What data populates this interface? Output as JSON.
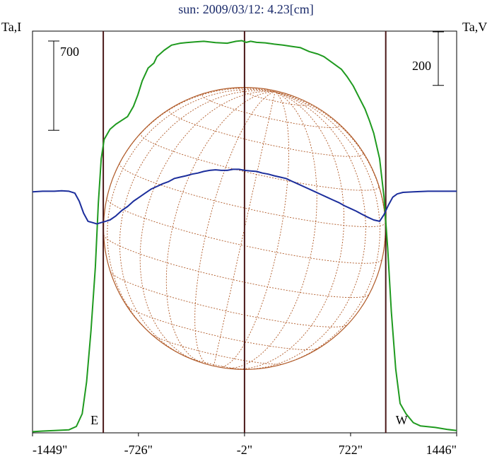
{
  "chart_data": {
    "type": "line",
    "title": "sun: 2009/03/12: 4.23[cm]",
    "xlim": [
      -1449,
      1446
    ],
    "x_ticks": [
      {
        "value": -1449,
        "label": "-1449\""
      },
      {
        "value": -726,
        "label": "-726\""
      },
      {
        "value": -2,
        "label": "-2\""
      },
      {
        "value": 722,
        "label": "722\""
      },
      {
        "value": 1446,
        "label": "1446\""
      }
    ],
    "left_axis": {
      "label": "Ta,I",
      "scale_bar_label": "700",
      "scale_bar_value": 700,
      "ylim": [
        0,
        3150
      ]
    },
    "right_axis": {
      "label": "Ta,V",
      "scale_bar_label": "200",
      "scale_bar_value": 200,
      "ylim": [
        -900,
        600
      ]
    },
    "limb_markers": [
      {
        "value": -966,
        "label": "E"
      },
      {
        "value": 962,
        "label": "W"
      }
    ],
    "center_marker": -2,
    "solar_disk": {
      "center_x": -2,
      "radius": 962,
      "line_color": "#b05a28"
    },
    "series": [
      {
        "name": "Ta,I",
        "axis": "left",
        "color": "#1f9a1f",
        "points": [
          [
            -1449,
            9
          ],
          [
            -1380,
            14
          ],
          [
            -1300,
            18
          ],
          [
            -1200,
            24
          ],
          [
            -1150,
            50
          ],
          [
            -1110,
            150
          ],
          [
            -1080,
            400
          ],
          [
            -1050,
            800
          ],
          [
            -1020,
            1300
          ],
          [
            -1000,
            1800
          ],
          [
            -980,
            2150
          ],
          [
            -960,
            2300
          ],
          [
            -920,
            2380
          ],
          [
            -880,
            2420
          ],
          [
            -840,
            2450
          ],
          [
            -800,
            2480
          ],
          [
            -760,
            2560
          ],
          [
            -730,
            2650
          ],
          [
            -700,
            2760
          ],
          [
            -660,
            2860
          ],
          [
            -620,
            2900
          ],
          [
            -600,
            2950
          ],
          [
            -550,
            3000
          ],
          [
            -500,
            3040
          ],
          [
            -440,
            3055
          ],
          [
            -400,
            3060
          ],
          [
            -340,
            3065
          ],
          [
            -280,
            3070
          ],
          [
            -200,
            3060
          ],
          [
            -120,
            3055
          ],
          [
            -60,
            3070
          ],
          [
            -20,
            3075
          ],
          [
            10,
            3062
          ],
          [
            40,
            3070
          ],
          [
            80,
            3062
          ],
          [
            140,
            3058
          ],
          [
            200,
            3048
          ],
          [
            260,
            3040
          ],
          [
            320,
            3030
          ],
          [
            380,
            3020
          ],
          [
            440,
            2990
          ],
          [
            500,
            2970
          ],
          [
            540,
            2950
          ],
          [
            600,
            2900
          ],
          [
            660,
            2850
          ],
          [
            700,
            2790
          ],
          [
            740,
            2720
          ],
          [
            780,
            2630
          ],
          [
            820,
            2540
          ],
          [
            850,
            2450
          ],
          [
            880,
            2350
          ],
          [
            920,
            2150
          ],
          [
            950,
            1850
          ],
          [
            975,
            1450
          ],
          [
            1000,
            950
          ],
          [
            1030,
            500
          ],
          [
            1060,
            230
          ],
          [
            1100,
            150
          ],
          [
            1150,
            80
          ],
          [
            1200,
            54
          ],
          [
            1300,
            42
          ],
          [
            1380,
            27
          ],
          [
            1446,
            18
          ]
        ]
      },
      {
        "name": "Ta,V",
        "axis": "right",
        "color": "#1c2e9c",
        "points": [
          [
            -1449,
            0
          ],
          [
            -1380,
            2
          ],
          [
            -1300,
            2
          ],
          [
            -1250,
            4
          ],
          [
            -1200,
            2
          ],
          [
            -1160,
            -5
          ],
          [
            -1130,
            -35
          ],
          [
            -1100,
            -80
          ],
          [
            -1070,
            -110
          ],
          [
            -1040,
            -115
          ],
          [
            -1010,
            -120
          ],
          [
            -980,
            -115
          ],
          [
            -950,
            -110
          ],
          [
            -920,
            -105
          ],
          [
            -880,
            -90
          ],
          [
            -840,
            -70
          ],
          [
            -800,
            -55
          ],
          [
            -760,
            -35
          ],
          [
            -720,
            -20
          ],
          [
            -680,
            -5
          ],
          [
            -640,
            10
          ],
          [
            -600,
            20
          ],
          [
            -560,
            30
          ],
          [
            -520,
            38
          ],
          [
            -480,
            50
          ],
          [
            -440,
            55
          ],
          [
            -400,
            60
          ],
          [
            -360,
            66
          ],
          [
            -320,
            70
          ],
          [
            -280,
            76
          ],
          [
            -240,
            80
          ],
          [
            -200,
            82
          ],
          [
            -160,
            80
          ],
          [
            -120,
            80
          ],
          [
            -80,
            84
          ],
          [
            -40,
            84
          ],
          [
            0,
            80
          ],
          [
            40,
            78
          ],
          [
            80,
            76
          ],
          [
            120,
            70
          ],
          [
            160,
            66
          ],
          [
            200,
            60
          ],
          [
            240,
            55
          ],
          [
            280,
            50
          ],
          [
            320,
            40
          ],
          [
            360,
            30
          ],
          [
            400,
            20
          ],
          [
            440,
            10
          ],
          [
            480,
            0
          ],
          [
            520,
            -10
          ],
          [
            560,
            -20
          ],
          [
            600,
            -30
          ],
          [
            640,
            -40
          ],
          [
            680,
            -52
          ],
          [
            720,
            -62
          ],
          [
            760,
            -72
          ],
          [
            800,
            -84
          ],
          [
            840,
            -95
          ],
          [
            880,
            -105
          ],
          [
            920,
            -110
          ],
          [
            950,
            -85
          ],
          [
            980,
            -50
          ],
          [
            1010,
            -20
          ],
          [
            1040,
            -8
          ],
          [
            1080,
            -2
          ],
          [
            1150,
            0
          ],
          [
            1250,
            2
          ],
          [
            1350,
            2
          ],
          [
            1446,
            2
          ]
        ]
      }
    ],
    "grid": false
  }
}
